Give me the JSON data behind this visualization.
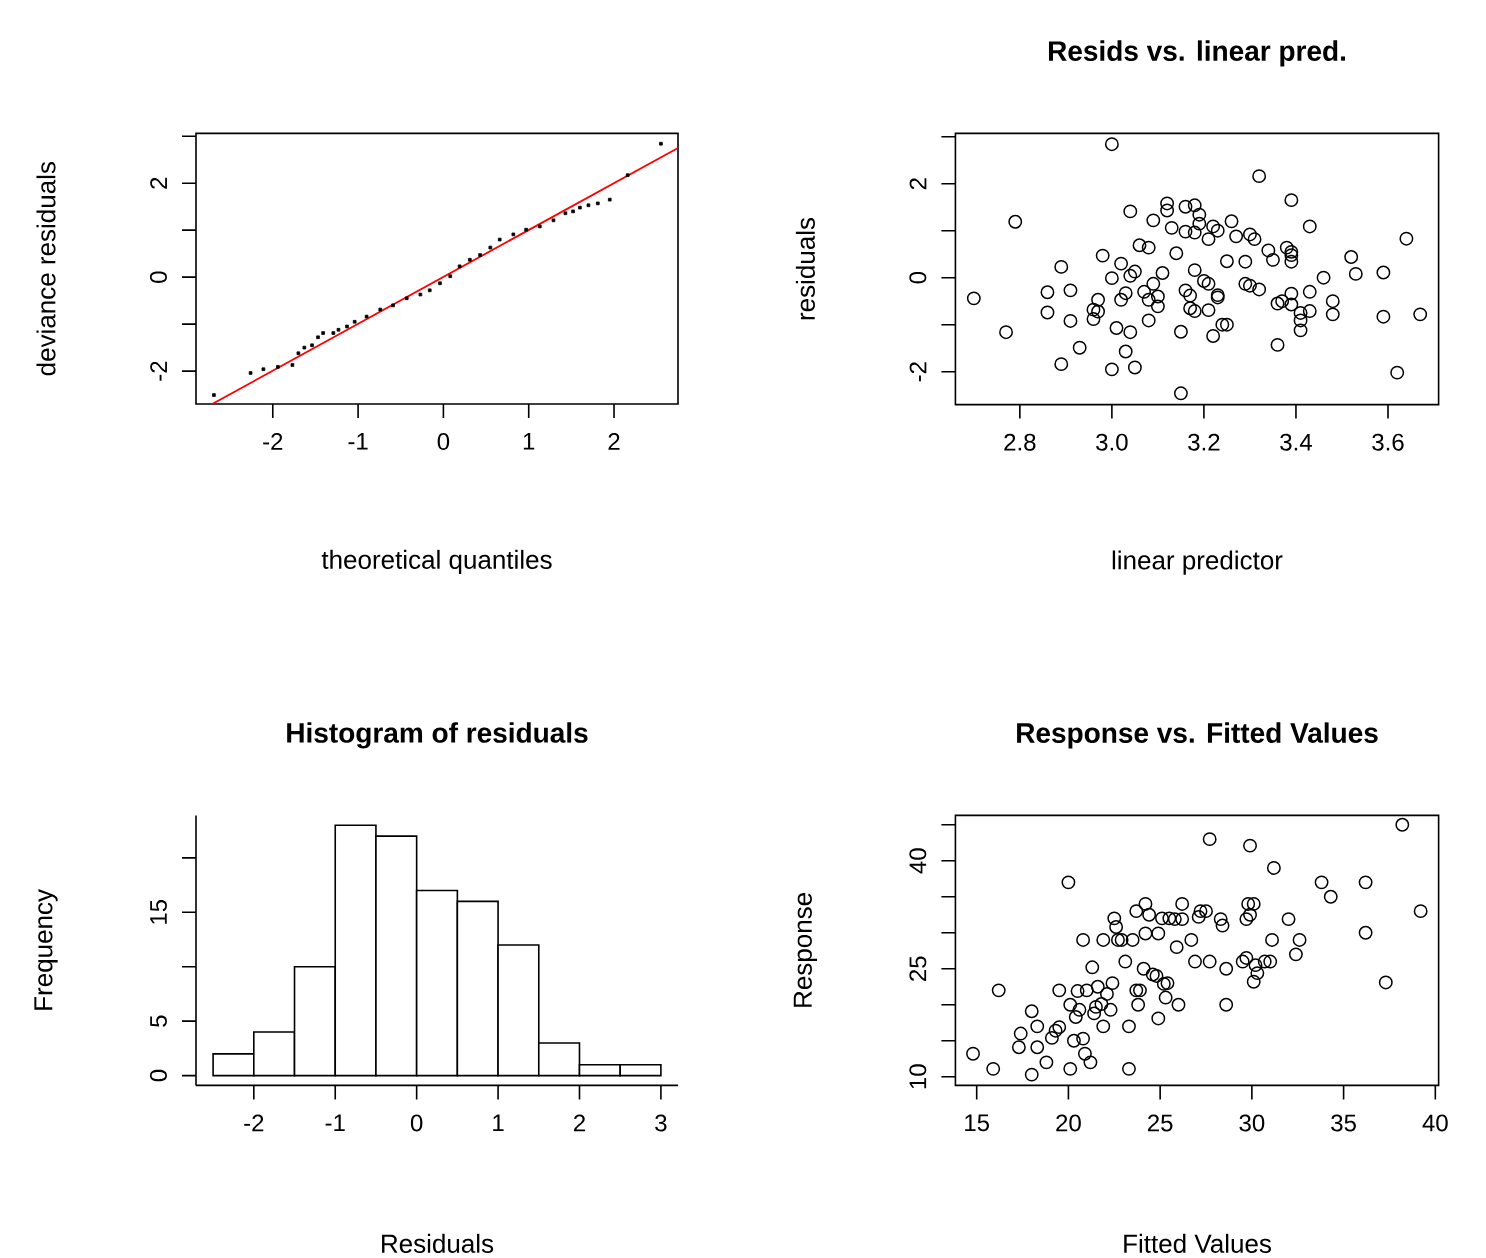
{
  "chart_data": [
    {
      "type": "scatter",
      "xlabel": "theoretical quantiles",
      "ylabel": "deviance residuals",
      "xlim": [
        -2.9,
        2.75
      ],
      "ylim": [
        -2.7,
        3.06
      ],
      "xticks": [
        -2,
        -1,
        0,
        1,
        2
      ],
      "yticks": [
        -2,
        {
          "value": -1,
          "label": null
        },
        0,
        {
          "value": 1,
          "label": null
        },
        2,
        {
          "value": 3,
          "label": null
        }
      ],
      "series": [
        {
          "type": "scatter",
          "marker": "square",
          "color": "#000000",
          "x": [
            -2.69,
            -2.26,
            -2.11,
            -1.94,
            -1.77,
            -1.7,
            -1.63,
            -1.54,
            -1.47,
            -1.41,
            -1.29,
            -1.23,
            -1.13,
            -1.04,
            -0.9,
            -0.74,
            -0.59,
            -0.43,
            -0.27,
            -0.16,
            -0.04,
            0.08,
            0.19,
            0.31,
            0.43,
            0.55,
            0.66,
            0.82,
            0.97,
            1.13,
            1.29,
            1.43,
            1.52,
            1.6,
            1.7,
            1.81,
            1.95,
            2.16,
            2.55
          ],
          "values": [
            -2.51,
            -2.04,
            -1.96,
            -1.91,
            -1.87,
            -1.62,
            -1.5,
            -1.45,
            -1.28,
            -1.19,
            -1.19,
            -1.12,
            -1.05,
            -0.95,
            -0.84,
            -0.69,
            -0.6,
            -0.45,
            -0.37,
            -0.28,
            -0.13,
            0.02,
            0.23,
            0.37,
            0.47,
            0.63,
            0.8,
            0.91,
            1.01,
            1.08,
            1.21,
            1.36,
            1.4,
            1.48,
            1.53,
            1.57,
            1.65,
            2.17,
            2.84
          ]
        },
        {
          "type": "line",
          "marker": "none",
          "color": "#ff0000",
          "x": [
            -2.71,
            2.75
          ],
          "values": [
            -2.7,
            2.75
          ]
        }
      ]
    },
    {
      "type": "scatter",
      "title": "Resids vs. linear pred.",
      "xlabel": "linear predictor",
      "ylabel": "residuals",
      "xlim": [
        2.66,
        3.71
      ],
      "ylim": [
        -2.7,
        3.07
      ],
      "xticks": [
        {
          "value": 2.8,
          "label": "2.8"
        },
        {
          "value": 3.0,
          "label": "3.0"
        },
        {
          "value": 3.2,
          "label": "3.2"
        },
        {
          "value": 3.4,
          "label": "3.4"
        },
        {
          "value": 3.6,
          "label": "3.6"
        }
      ],
      "yticks": [
        -2,
        {
          "value": -1,
          "label": null
        },
        0,
        {
          "value": 1,
          "label": null
        },
        2,
        {
          "value": 3,
          "label": null
        }
      ],
      "series": [
        {
          "type": "scatter",
          "marker": "circle",
          "color": "#000000",
          "x": [
            2.7,
            2.77,
            2.79,
            2.86,
            2.86,
            2.89,
            2.91,
            2.89,
            2.91,
            2.93,
            2.96,
            2.97,
            2.96,
            2.97,
            2.98,
            3.0,
            3.0,
            3.01,
            3.02,
            3.02,
            3.03,
            3.03,
            3.0,
            3.04,
            3.04,
            3.04,
            3.05,
            3.06,
            3.05,
            3.07,
            3.08,
            3.08,
            3.08,
            3.09,
            3.09,
            3.1,
            3.1,
            3.11,
            3.12,
            3.12,
            3.13,
            3.14,
            3.15,
            3.15,
            3.16,
            3.16,
            3.16,
            3.17,
            3.17,
            3.18,
            3.18,
            3.18,
            3.18,
            3.19,
            3.19,
            3.2,
            3.21,
            3.21,
            3.21,
            3.22,
            3.22,
            3.23,
            3.23,
            3.23,
            3.24,
            3.25,
            3.25,
            3.26,
            3.27,
            3.29,
            3.29,
            3.3,
            3.3,
            3.31,
            3.32,
            3.32,
            3.34,
            3.35,
            3.36,
            3.36,
            3.37,
            3.38,
            3.39,
            3.39,
            3.39,
            3.39,
            3.39,
            3.39,
            3.41,
            3.41,
            3.41,
            3.43,
            3.43,
            3.43,
            3.46,
            3.48,
            3.48,
            3.52,
            3.53,
            3.59,
            3.59,
            3.62,
            3.64,
            3.67
          ],
          "values": [
            -0.44,
            -1.16,
            1.19,
            -0.31,
            -0.74,
            0.23,
            -0.27,
            -1.84,
            -0.92,
            -1.49,
            -0.88,
            -0.47,
            -0.68,
            -0.72,
            0.47,
            2.84,
            -0.01,
            -1.07,
            -0.47,
            0.3,
            -0.33,
            -1.57,
            -1.95,
            1.41,
            -1.16,
            0.04,
            -1.91,
            0.69,
            0.13,
            -0.3,
            0.64,
            -0.47,
            -0.91,
            1.22,
            -0.13,
            -0.4,
            -0.61,
            0.1,
            1.58,
            1.43,
            1.06,
            0.52,
            -1.15,
            -2.46,
            0.98,
            -0.27,
            1.51,
            -0.65,
            -0.38,
            0.96,
            0.16,
            1.54,
            -0.71,
            1.34,
            1.15,
            -0.07,
            0.82,
            -0.13,
            -0.69,
            -1.24,
            1.09,
            -0.37,
            -0.42,
            1.0,
            -1.0,
            0.35,
            -1.0,
            1.2,
            0.88,
            0.34,
            -0.13,
            -0.17,
            0.92,
            0.82,
            -0.25,
            2.16,
            0.58,
            0.38,
            -1.43,
            -0.55,
            -0.5,
            0.64,
            0.55,
            0.34,
            1.65,
            0.48,
            -0.34,
            -0.57,
            -1.12,
            -0.91,
            -0.75,
            -0.71,
            -0.3,
            1.09,
            0.0,
            -0.78,
            -0.5,
            0.44,
            0.08,
            0.11,
            -0.83,
            -2.02,
            0.83,
            -0.78
          ]
        }
      ]
    },
    {
      "type": "histogram",
      "title": "Histogram of residuals",
      "xlabel": "Residuals",
      "ylabel": "Frequency",
      "color": "#ffffff",
      "xlim": [
        -2.71,
        3.21
      ],
      "ylim": [
        -0.9,
        23.9
      ],
      "xticks": [
        -2,
        -1,
        0,
        1,
        2,
        3
      ],
      "yticks": [
        0,
        5,
        {
          "value": 10,
          "label": null
        },
        15,
        {
          "value": 20,
          "label": null
        }
      ],
      "bins": [
        -2.5,
        -2,
        -1.5,
        -1,
        -0.5,
        0,
        0.5,
        1,
        1.5,
        2,
        2.5,
        3
      ],
      "values": [
        2,
        4,
        10,
        23,
        22,
        17,
        16,
        12,
        3,
        1,
        1
      ]
    },
    {
      "type": "scatter",
      "title": "Response vs. Fitted Values",
      "xlabel": "Fitted Values",
      "ylabel": "Response",
      "xlim": [
        13.84,
        40.18
      ],
      "ylim": [
        8.8,
        46.3
      ],
      "xticks": [
        15,
        20,
        25,
        30,
        35,
        40
      ],
      "yticks": [
        10,
        {
          "value": 15,
          "label": null
        },
        {
          "value": 20,
          "label": null
        },
        25,
        {
          "value": 30,
          "label": null
        },
        {
          "value": 35,
          "label": null
        },
        40,
        {
          "value": 45,
          "label": null
        }
      ],
      "series": [
        {
          "type": "scatter",
          "marker": "circle",
          "color": "#000000",
          "x": [
            14.8,
            15.9,
            16.2,
            17.4,
            17.3,
            18.0,
            18.0,
            18.3,
            18.3,
            18.8,
            19.1,
            19.3,
            19.5,
            19.5,
            20.0,
            20.1,
            20.1,
            20.3,
            20.4,
            20.5,
            20.6,
            20.8,
            20.8,
            20.9,
            21.0,
            21.2,
            21.3,
            21.4,
            21.5,
            21.6,
            21.8,
            21.9,
            21.9,
            22.1,
            22.3,
            22.4,
            22.5,
            22.6,
            22.7,
            22.9,
            23.1,
            23.3,
            23.3,
            23.5,
            23.7,
            23.7,
            23.8,
            23.9,
            24.1,
            24.2,
            24.2,
            24.4,
            24.6,
            24.8,
            24.9,
            24.9,
            25.1,
            25.2,
            25.3,
            25.4,
            25.5,
            25.8,
            25.9,
            26.0,
            26.2,
            26.2,
            26.7,
            26.9,
            27.1,
            27.2,
            27.5,
            27.7,
            27.7,
            28.3,
            28.4,
            28.6,
            28.6,
            29.5,
            29.7,
            29.7,
            29.8,
            29.9,
            29.9,
            30.1,
            30.1,
            30.3,
            30.2,
            30.7,
            31.0,
            31.1,
            31.2,
            32.0,
            32.4,
            32.6,
            33.8,
            34.3,
            36.2,
            36.2,
            37.3,
            38.2,
            39.2
          ],
          "values": [
            13.2,
            11.1,
            22.0,
            16.0,
            14.1,
            19.1,
            10.3,
            17.0,
            14.1,
            12.0,
            15.4,
            16.4,
            16.9,
            22.0,
            37.0,
            11.1,
            20.0,
            15.0,
            18.3,
            21.9,
            19.3,
            15.3,
            29.0,
            13.2,
            22.0,
            12.0,
            25.2,
            18.8,
            19.7,
            22.5,
            20.1,
            29.0,
            17.0,
            21.5,
            19.3,
            23.0,
            32.0,
            30.8,
            29.0,
            29.0,
            26.0,
            11.1,
            17.0,
            29.0,
            33.0,
            22.0,
            20.0,
            22.0,
            25.0,
            34.0,
            29.9,
            32.5,
            24.2,
            24.0,
            18.1,
            29.9,
            32.0,
            22.9,
            21.0,
            23.0,
            32.0,
            31.9,
            28.0,
            20.0,
            34.0,
            31.9,
            29.0,
            26.0,
            32.2,
            33.0,
            33.0,
            43.0,
            26.0,
            31.9,
            31.0,
            20.0,
            25.0,
            26.0,
            26.5,
            31.9,
            34.0,
            42.1,
            32.5,
            34.0,
            23.2,
            24.4,
            25.5,
            26.0,
            26.0,
            29.0,
            39.0,
            31.9,
            27.0,
            29.0,
            37.0,
            35.0,
            30.0,
            37.0,
            23.1,
            45.0,
            33.0
          ]
        }
      ]
    }
  ]
}
